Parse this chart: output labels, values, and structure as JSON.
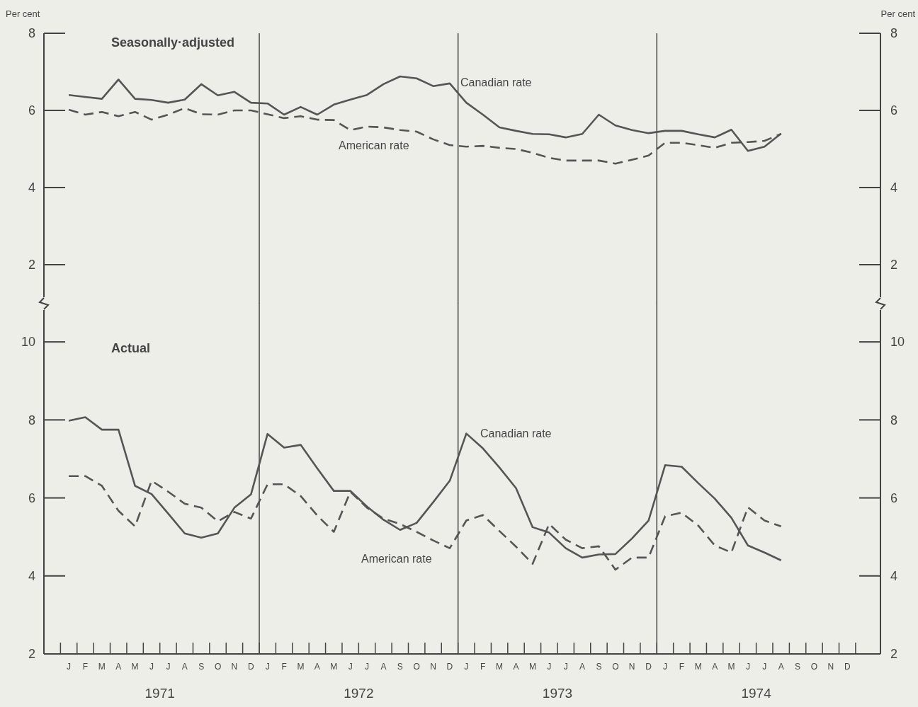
{
  "chart_data": [
    {
      "type": "line",
      "title": "Seasonally·adjusted",
      "ylabel": "Per cent",
      "y2label": "Per cent",
      "legend": false,
      "grid": false,
      "tick_labels": "y",
      "categories": [
        null,
        null,
        null,
        null,
        null,
        null,
        null,
        null,
        null,
        null,
        null,
        null,
        null,
        null,
        null,
        null,
        null,
        null,
        null,
        null,
        null,
        null,
        null,
        null,
        null,
        null,
        null,
        null,
        null,
        null,
        null,
        null,
        null,
        null,
        null,
        null,
        null,
        null,
        null,
        null,
        null,
        null,
        null,
        null,
        null,
        null,
        null,
        null
      ],
      "ylim": [
        1,
        8
      ],
      "yticks": [
        2,
        4,
        6,
        8
      ],
      "y2lim": [
        1,
        8
      ],
      "y2ticks": [
        2,
        4,
        6,
        8
      ],
      "series": [
        {
          "name": "Canadian rate",
          "color": "#555555",
          "line_style": "solid",
          "values": [
            6.4,
            6.35,
            6.3,
            6.8,
            6.3,
            6.27,
            6.2,
            6.28,
            6.68,
            6.39,
            6.48,
            6.2,
            6.18,
            5.89,
            6.09,
            5.89,
            6.15,
            6.28,
            6.4,
            6.68,
            6.88,
            6.83,
            6.63,
            6.7,
            6.2,
            5.89,
            5.56,
            5.47,
            5.39,
            5.38,
            5.3,
            5.39,
            5.89,
            5.61,
            5.49,
            5.41,
            5.47,
            5.47,
            5.38,
            5.3,
            5.5,
            4.95,
            5.06,
            5.4,
            null,
            null,
            null,
            null
          ]
        },
        {
          "name": "American rate",
          "color": "#555555",
          "line_style": "dashed",
          "values": [
            6.02,
            5.89,
            5.96,
            5.85,
            5.96,
            5.76,
            5.89,
            6.06,
            5.9,
            5.89,
            6.0,
            6.0,
            5.9,
            5.8,
            5.85,
            5.76,
            5.75,
            5.49,
            5.58,
            5.56,
            5.49,
            5.45,
            5.25,
            5.1,
            5.06,
            5.08,
            5.03,
            5.0,
            4.9,
            4.77,
            4.7,
            4.7,
            4.7,
            4.62,
            4.72,
            4.83,
            5.16,
            5.16,
            5.1,
            5.03,
            5.16,
            5.18,
            5.21,
            5.39,
            null,
            null,
            null,
            null
          ]
        }
      ]
    },
    {
      "type": "line",
      "title": "Actual",
      "legend": false,
      "grid": false,
      "categories": [
        "J",
        "F",
        "M",
        "A",
        "M",
        "J",
        "J",
        "A",
        "S",
        "O",
        "N",
        "D",
        "J",
        "F",
        "M",
        "A",
        "M",
        "J",
        "J",
        "A",
        "S",
        "O",
        "N",
        "D",
        "J",
        "F",
        "M",
        "A",
        "M",
        "J",
        "J",
        "A",
        "S",
        "O",
        "N",
        "D",
        "J",
        "F",
        "M",
        "A",
        "M",
        "J",
        "J",
        "A",
        "S",
        "O",
        "N",
        "D"
      ],
      "ylim": [
        2,
        11
      ],
      "yticks": [
        2,
        4,
        6,
        8,
        10
      ],
      "y2lim": [
        2,
        11
      ],
      "y2ticks": [
        2,
        4,
        6,
        8,
        10
      ],
      "series": [
        {
          "name": "Canadian rate",
          "color": "#555555",
          "line_style": "solid",
          "values": [
            7.98,
            8.07,
            7.75,
            7.75,
            6.31,
            6.1,
            5.6,
            5.09,
            4.98,
            5.09,
            5.75,
            6.09,
            7.64,
            7.29,
            7.36,
            6.76,
            6.18,
            6.18,
            5.78,
            5.44,
            5.18,
            5.36,
            5.89,
            6.44,
            7.65,
            7.27,
            6.78,
            6.25,
            5.25,
            5.11,
            4.71,
            4.47,
            4.55,
            4.56,
            4.96,
            5.42,
            6.84,
            6.8,
            6.38,
            5.98,
            5.49,
            4.78,
            4.6,
            4.4,
            null,
            null,
            null,
            null
          ]
        },
        {
          "name": "American rate",
          "color": "#555555",
          "line_style": "dashed",
          "values": [
            6.56,
            6.56,
            6.31,
            5.67,
            5.27,
            6.44,
            6.16,
            5.85,
            5.75,
            5.4,
            5.64,
            5.47,
            6.35,
            6.35,
            6.05,
            5.55,
            5.13,
            6.16,
            5.75,
            5.47,
            5.33,
            5.13,
            4.91,
            4.71,
            5.42,
            5.56,
            5.15,
            4.75,
            4.31,
            5.33,
            4.93,
            4.71,
            4.76,
            4.16,
            4.47,
            4.47,
            5.53,
            5.62,
            5.29,
            4.78,
            4.6,
            5.76,
            5.42,
            5.27,
            null,
            null,
            null,
            null
          ]
        }
      ],
      "annotations": [
        "1971",
        "1972",
        "1973",
        "1974"
      ]
    }
  ]
}
